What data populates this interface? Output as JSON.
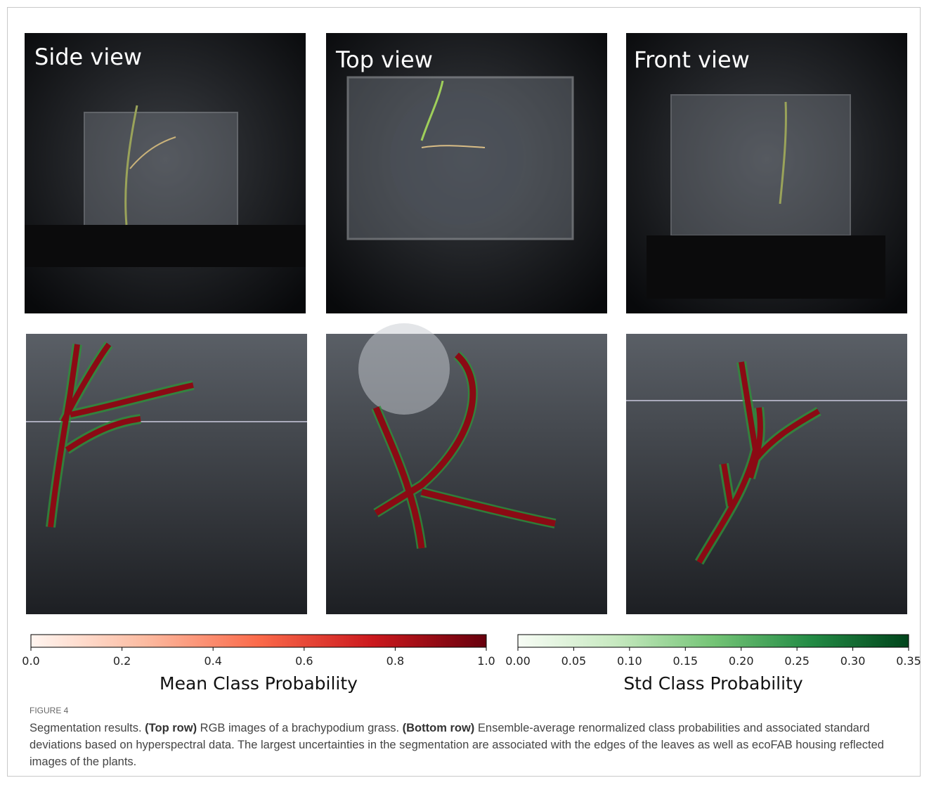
{
  "panels": {
    "top_labels": [
      "Side view",
      "Top view",
      "Front view"
    ]
  },
  "colorbars": [
    {
      "label": "Mean Class Probability",
      "lim": [
        0,
        1
      ],
      "colors": [
        "#fff5f0",
        "#fcbba1",
        "#fb6a4a",
        "#cb181d",
        "#67000d"
      ],
      "ticks": [
        {
          "value": 0,
          "label": "0.0"
        },
        {
          "value": 0.2,
          "label": "0.2"
        },
        {
          "value": 0.4,
          "label": "0.4"
        },
        {
          "value": 0.6,
          "label": "0.6"
        },
        {
          "value": 0.8,
          "label": "0.8"
        },
        {
          "value": 1,
          "label": "1.0"
        }
      ]
    },
    {
      "label": "Std Class Probability",
      "lim": [
        0,
        0.35
      ],
      "colors": [
        "#f7fcf5",
        "#c7e9c0",
        "#74c476",
        "#238b45",
        "#00441b"
      ],
      "ticks": [
        {
          "value": 0,
          "label": "0.00"
        },
        0.05,
        {
          "value": 0.1,
          "label": "0.10"
        },
        0.15,
        {
          "value": 0.2,
          "label": "0.20"
        },
        0.25,
        {
          "value": 0.3,
          "label": "0.30"
        },
        0.35
      ]
    }
  ],
  "caption": {
    "label": "FIGURE 4",
    "lead": "Segmentation results. ",
    "top_label": "(Top row)",
    "top_text": " RGB images of a brachypodium grass. ",
    "bottom_label": "(Bottom row)",
    "bottom_text": " Ensemble-average renormalized class probabilities and associated standard deviations based on hyperspectral data. The largest uncertainties in the segmentation are associated with the edges of the leaves as well as ecoFAB housing reflected images of the plants."
  }
}
